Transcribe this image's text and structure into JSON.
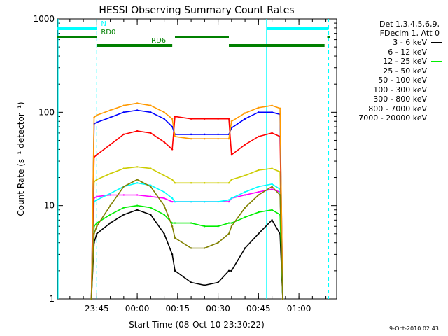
{
  "chart_data": {
    "type": "line",
    "title": "HESSI Observing Summary Count Rates",
    "xlabel": "Start Time (08-Oct-10 23:30:22)",
    "ylabel": "Count Rate (s⁻¹ detector⁻¹)",
    "y_scale": "log",
    "ylim": [
      1,
      1000
    ],
    "y_ticks": [
      {
        "v": 1,
        "label": "1"
      },
      {
        "v": 10,
        "label": "10"
      },
      {
        "v": 100,
        "label": "100"
      },
      {
        "v": 1000,
        "label": "1000"
      }
    ],
    "xlim": [
      "23:30:22",
      "01:14:00"
    ],
    "x_ticks": [
      {
        "t": "23:45",
        "label": "23:45"
      },
      {
        "t": "00:00",
        "label": "00:00"
      },
      {
        "t": "00:15",
        "label": "00:15"
      },
      {
        "t": "00:30",
        "label": "00:30"
      },
      {
        "t": "00:45",
        "label": "00:45"
      },
      {
        "t": "01:00",
        "label": "01:00"
      }
    ],
    "legend": {
      "placement": "right",
      "header": [
        "Det 1,3,4,5,6,9,",
        "FDecim 1, Att 0"
      ]
    },
    "x": [
      "23:43",
      "23:44",
      "23:45",
      "23:50",
      "23:55",
      "00:00",
      "00:05",
      "00:10",
      "00:13",
      "00:14",
      "00:20",
      "00:25",
      "00:30",
      "00:34",
      "00:35",
      "00:40",
      "00:45",
      "00:50",
      "00:53",
      "00:54"
    ],
    "series": [
      {
        "name": "3 - 6 keV",
        "color": "#000000",
        "values": [
          1.0,
          4.0,
          5.0,
          6.5,
          8.0,
          9.0,
          8.0,
          5.0,
          3.0,
          2.0,
          1.5,
          1.4,
          1.5,
          2.0,
          2.0,
          3.5,
          5.0,
          7.0,
          5.0,
          1.0
        ]
      },
      {
        "name": "6 - 12 keV",
        "color": "#ff00ff",
        "values": [
          1.0,
          12.0,
          12.5,
          13.0,
          13.0,
          13.0,
          12.5,
          12.0,
          11.0,
          11.0,
          11.0,
          11.0,
          11.0,
          11.0,
          12.0,
          13.0,
          14.0,
          15.0,
          14.0,
          1.0
        ]
      },
      {
        "name": "12 - 25 keV",
        "color": "#00ee00",
        "values": [
          1.0,
          6.0,
          6.5,
          8.0,
          9.5,
          10.0,
          9.5,
          8.0,
          6.5,
          6.5,
          6.5,
          6.0,
          6.0,
          6.5,
          6.5,
          7.5,
          8.5,
          9.0,
          8.0,
          1.0
        ]
      },
      {
        "name": "25 - 50 keV",
        "color": "#00ffff",
        "values": [
          1.0,
          11.0,
          11.5,
          13.5,
          16.0,
          17.5,
          16.5,
          14.0,
          12.0,
          11.0,
          11.0,
          11.0,
          11.0,
          11.5,
          12.0,
          14.0,
          16.0,
          17.0,
          15.0,
          1.0
        ]
      },
      {
        "name": "50 - 100 keV",
        "color": "#cccc00",
        "values": [
          1.0,
          18.0,
          19.0,
          22.0,
          25.0,
          26.0,
          25.0,
          21.0,
          19.0,
          17.5,
          17.5,
          17.5,
          17.5,
          17.5,
          19.0,
          21.0,
          24.0,
          25.0,
          23.0,
          1.0
        ]
      },
      {
        "name": "100 - 300 keV",
        "color": "#ff0000",
        "values": [
          1.0,
          33.0,
          35.0,
          45.0,
          58.0,
          63.0,
          60.0,
          48.0,
          40.0,
          90.0,
          85.0,
          85.0,
          85.0,
          85.0,
          35.0,
          45.0,
          55.0,
          60.0,
          55.0,
          1.0
        ]
      },
      {
        "name": "300 - 800 keV",
        "color": "#0000ff",
        "values": [
          1.0,
          75.0,
          78.0,
          88.0,
          100.0,
          105.0,
          100.0,
          85.0,
          70.0,
          58.0,
          58.0,
          58.0,
          58.0,
          58.0,
          68.0,
          85.0,
          100.0,
          100.0,
          95.0,
          1.0
        ]
      },
      {
        "name": "800 - 7000 keV",
        "color": "#ff9900",
        "values": [
          1.0,
          88.0,
          93.0,
          105.0,
          118.0,
          125.0,
          118.0,
          100.0,
          85.0,
          55.0,
          52.0,
          52.0,
          52.0,
          52.0,
          80.0,
          98.0,
          112.0,
          118.0,
          110.0,
          1.0
        ]
      },
      {
        "name": "7000 - 20000 keV",
        "color": "#808000",
        "values": [
          1.0,
          5.0,
          6.0,
          10.0,
          16.0,
          19.0,
          16.0,
          10.0,
          6.0,
          4.5,
          3.5,
          3.5,
          4.0,
          5.0,
          6.0,
          9.5,
          13.0,
          16.0,
          13.0,
          1.0
        ]
      }
    ],
    "flags": [
      {
        "name": "N",
        "color": "#00ffff",
        "level": 1,
        "segments": [
          [
            "23:30:22",
            "23:45:00"
          ],
          [
            "00:48:00",
            "01:11:00"
          ]
        ]
      },
      {
        "name": "RD0",
        "color": "#008000",
        "level": 0.88,
        "segments": [
          [
            "23:30:22",
            "23:45:00"
          ],
          [
            "00:14:00",
            "00:34:00"
          ],
          [
            "01:10:30",
            "01:11:30"
          ]
        ]
      },
      {
        "name": "RD6",
        "color": "#008000",
        "level": 0.76,
        "segments": [
          [
            "23:45:00",
            "00:13:00"
          ],
          [
            "00:34:00",
            "01:09:30"
          ]
        ]
      }
    ],
    "markers": [
      {
        "t": "23:30:22",
        "color": "#00ffff",
        "style": "solid"
      },
      {
        "t": "23:45:00",
        "color": "#00ffff",
        "style": "dashed"
      },
      {
        "t": "00:48:00",
        "color": "#00ffff",
        "style": "solid"
      },
      {
        "t": "01:11:00",
        "color": "#00ffff",
        "style": "dashed"
      }
    ]
  },
  "timestamp": "9-Oct-2010 02:43"
}
